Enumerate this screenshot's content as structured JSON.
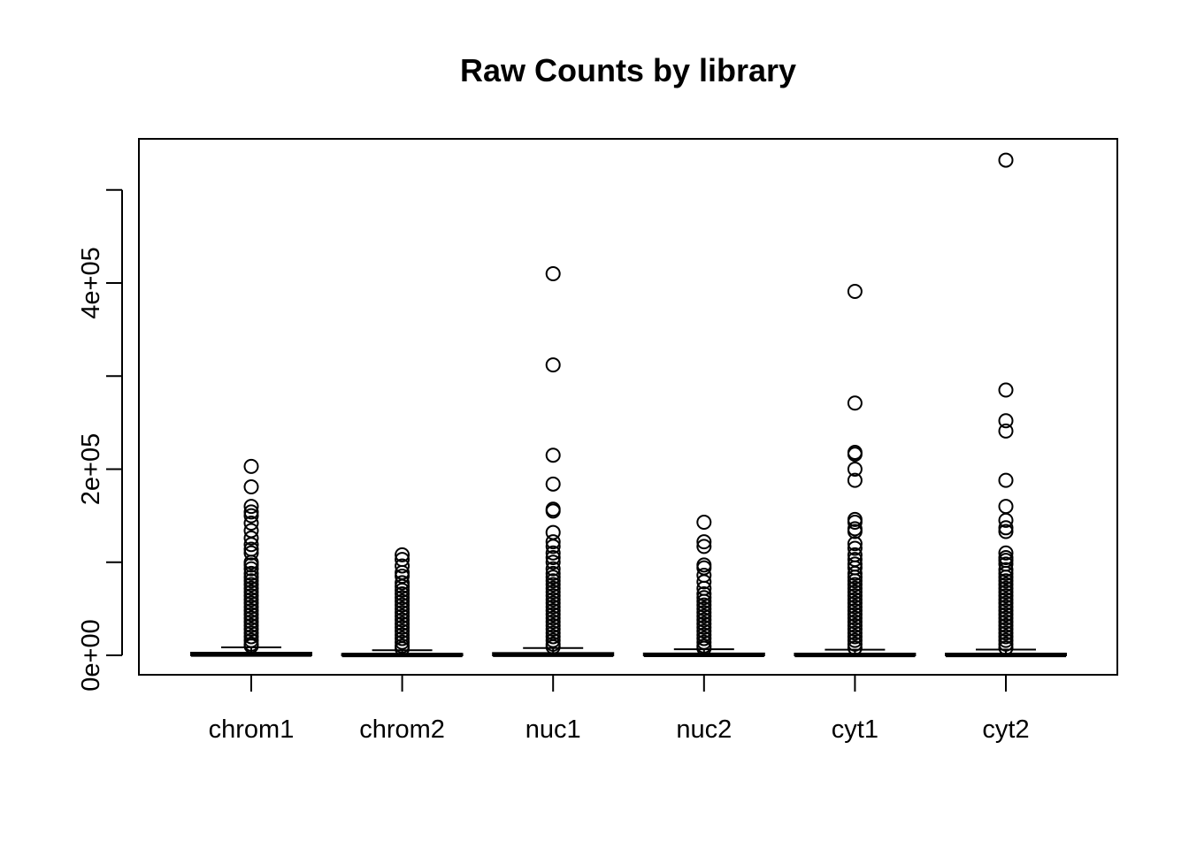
{
  "chart_data": {
    "type": "box",
    "title": "Raw Counts by library",
    "xlabel": "",
    "ylabel": "",
    "ylim": [
      -4500,
      540000
    ],
    "y_ticks": [
      0,
      100000,
      200000,
      300000,
      400000,
      500000
    ],
    "y_tick_labels": [
      "0e+00",
      "",
      "2e+05",
      "",
      "4e+05",
      ""
    ],
    "categories": [
      "chrom1",
      "chrom2",
      "nuc1",
      "nuc2",
      "cyt1",
      "cyt2"
    ],
    "boxes": [
      {
        "name": "chrom1",
        "q1": 0,
        "median": 800,
        "q3": 2800,
        "whisker_low": 0,
        "whisker_high": 8500,
        "outliers": [
          203000,
          181000,
          160000,
          154000,
          150000,
          142000,
          134000,
          126000,
          119000,
          114000,
          110000,
          100000,
          97000,
          93000,
          88000,
          84000,
          80000,
          76000,
          72000,
          68000,
          64000,
          60000,
          56000,
          52000,
          48000,
          44000,
          40000,
          36000,
          32000,
          28000,
          24000,
          20000,
          16000,
          12000,
          10000
        ]
      },
      {
        "name": "chrom2",
        "q1": 0,
        "median": 300,
        "q3": 1500,
        "whisker_low": 0,
        "whisker_high": 5500,
        "outliers": [
          108000,
          103000,
          96000,
          89000,
          85000,
          78000,
          74000,
          70000,
          66000,
          62000,
          58000,
          54000,
          50000,
          46000,
          42000,
          38000,
          34000,
          30000,
          26000,
          22000,
          18000,
          14000,
          10000,
          7000
        ]
      },
      {
        "name": "nuc1",
        "q1": 0,
        "median": 600,
        "q3": 2500,
        "whisker_low": 0,
        "whisker_high": 7800,
        "outliers": [
          410000,
          312000,
          215000,
          184000,
          157000,
          155000,
          132000,
          122000,
          117000,
          110000,
          105000,
          100000,
          93000,
          88000,
          84000,
          80000,
          76000,
          72000,
          68000,
          64000,
          60000,
          56000,
          52000,
          48000,
          44000,
          40000,
          36000,
          32000,
          28000,
          24000,
          20000,
          16000,
          12000,
          9000
        ]
      },
      {
        "name": "nuc2",
        "q1": 0,
        "median": 500,
        "q3": 2000,
        "whisker_low": 0,
        "whisker_high": 6500,
        "outliers": [
          143000,
          122000,
          117000,
          97000,
          94000,
          86000,
          79000,
          72000,
          66000,
          62000,
          58000,
          54000,
          50000,
          46000,
          42000,
          38000,
          34000,
          30000,
          26000,
          22000,
          18000,
          14000,
          10000,
          7500
        ]
      },
      {
        "name": "cyt1",
        "q1": 0,
        "median": 400,
        "q3": 1800,
        "whisker_low": 0,
        "whisker_high": 6000,
        "outliers": [
          391000,
          271000,
          218000,
          216000,
          200000,
          188000,
          146000,
          143000,
          136000,
          133000,
          120000,
          115000,
          108000,
          103000,
          98000,
          94000,
          88000,
          84000,
          80000,
          76000,
          72000,
          68000,
          64000,
          60000,
          56000,
          52000,
          48000,
          44000,
          40000,
          36000,
          32000,
          28000,
          24000,
          20000,
          16000,
          12000,
          8000
        ]
      },
      {
        "name": "cyt2",
        "q1": 0,
        "median": 400,
        "q3": 1800,
        "whisker_low": 0,
        "whisker_high": 6200,
        "outliers": [
          532000,
          285000,
          252000,
          241000,
          188000,
          160000,
          145000,
          137000,
          133000,
          110000,
          105000,
          102000,
          98000,
          92000,
          88000,
          84000,
          80000,
          76000,
          72000,
          68000,
          64000,
          60000,
          56000,
          52000,
          48000,
          44000,
          40000,
          36000,
          32000,
          28000,
          24000,
          20000,
          16000,
          12000,
          8000
        ]
      }
    ],
    "grid": false,
    "legend": "none"
  }
}
